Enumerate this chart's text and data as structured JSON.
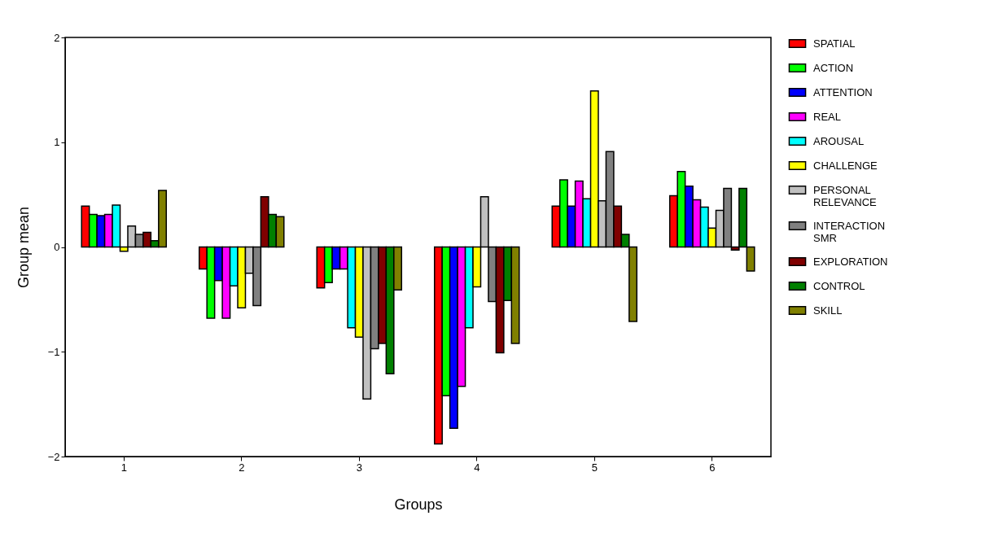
{
  "chart_data": {
    "type": "bar",
    "xlabel": "Groups",
    "ylabel": "Group mean",
    "categories": [
      "1",
      "2",
      "3",
      "4",
      "5",
      "6"
    ],
    "ylim": [
      -2,
      2
    ],
    "yticks": [
      -2,
      -1,
      0,
      1,
      2
    ],
    "grid": false,
    "legend": "right",
    "series": [
      {
        "name": "SPATIAL",
        "color": "#ff0000",
        "values": [
          0.39,
          -0.21,
          -0.39,
          -1.88,
          0.39,
          0.49
        ]
      },
      {
        "name": "ACTION",
        "color": "#00ff00",
        "values": [
          0.31,
          -0.68,
          -0.34,
          -1.42,
          0.64,
          0.72
        ]
      },
      {
        "name": "ATTENTION",
        "color": "#0000ff",
        "values": [
          0.3,
          -0.32,
          -0.21,
          -1.73,
          0.39,
          0.58
        ]
      },
      {
        "name": "REAL",
        "color": "#ff00ff",
        "values": [
          0.31,
          -0.68,
          -0.21,
          -1.33,
          0.63,
          0.45
        ]
      },
      {
        "name": "AROUSAL",
        "color": "#00ffff",
        "values": [
          0.4,
          -0.37,
          -0.77,
          -0.77,
          0.46,
          0.38
        ]
      },
      {
        "name": "CHALLENGE",
        "color": "#ffff00",
        "values": [
          -0.04,
          -0.58,
          -0.86,
          -0.38,
          1.49,
          0.18
        ]
      },
      {
        "name": "PERSONAL RELEVANCE",
        "color": "#c0c0c0",
        "values": [
          0.2,
          -0.25,
          -1.45,
          0.48,
          0.44,
          0.35
        ]
      },
      {
        "name": "INTERACTION SMR",
        "color": "#808080",
        "values": [
          0.12,
          -0.56,
          -0.97,
          -0.52,
          0.91,
          0.56
        ]
      },
      {
        "name": "EXPLORATION",
        "color": "#800000",
        "values": [
          0.14,
          0.48,
          -0.92,
          -1.01,
          0.39,
          -0.03
        ]
      },
      {
        "name": "CONTROL",
        "color": "#008000",
        "values": [
          0.06,
          0.31,
          -1.21,
          -0.51,
          0.12,
          0.56
        ]
      },
      {
        "name": "SKILL",
        "color": "#808000",
        "values": [
          0.54,
          0.29,
          -0.41,
          -0.92,
          -0.71,
          -0.23
        ]
      }
    ]
  }
}
